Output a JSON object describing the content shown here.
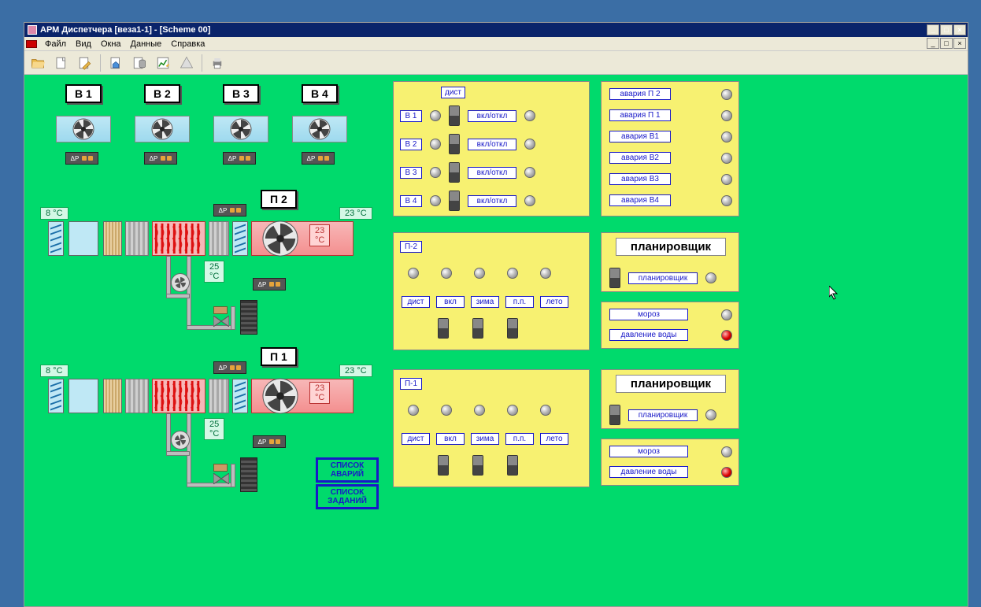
{
  "window": {
    "title": "АРМ Диспетчера [веза1-1] - [Scheme 00]"
  },
  "menu": [
    "Файл",
    "Вид",
    "Окна",
    "Данные",
    "Справка"
  ],
  "toolbar_icons": [
    "open",
    "new",
    "edit",
    "home",
    "db",
    "chart",
    "alarms",
    "print"
  ],
  "fans_top": [
    {
      "label": "В 1"
    },
    {
      "label": "В 2"
    },
    {
      "label": "В 3"
    },
    {
      "label": "В 4"
    }
  ],
  "ahu": [
    {
      "name": "П 2",
      "temp_in": "8  °C",
      "temp_mid": "23  °C",
      "temp_out": "23  °C",
      "temp_supply": "25  °C"
    },
    {
      "name": "П 1",
      "temp_in": "8  °C",
      "temp_mid": "23  °C",
      "temp_out": "23  °C",
      "temp_supply": "25  °C"
    }
  ],
  "listbtns": {
    "alarms": "СПИСОК АВАРИЙ",
    "tasks": "СПИСОК ЗАДАНИЙ"
  },
  "panel_v": {
    "dist": "дист",
    "rows": [
      {
        "label": "В 1",
        "btn": "вкл/откл"
      },
      {
        "label": "В 2",
        "btn": "вкл/откл"
      },
      {
        "label": "В 3",
        "btn": "вкл/откл"
      },
      {
        "label": "В 4",
        "btn": "вкл/откл"
      }
    ]
  },
  "panel_alarms": {
    "items": [
      "авария П 2",
      "авария П 1",
      "авария В1",
      "авария В2",
      "авария В3",
      "авария В4"
    ]
  },
  "panel_p": [
    {
      "label": "П-2",
      "btns": [
        "дист",
        "вкл",
        "зима",
        "п.п.",
        "лето"
      ]
    },
    {
      "label": "П-1",
      "btns": [
        "дист",
        "вкл",
        "зима",
        "п.п.",
        "лето"
      ]
    }
  ],
  "panel_plan": {
    "title": "планировщик",
    "btn": "планировщик",
    "extra": [
      {
        "label": "мороз",
        "lamp": "grey"
      },
      {
        "label": "давление воды",
        "lamp": "red"
      }
    ]
  },
  "colors": {
    "canvas": "#00da6c",
    "panel": "#f7f171",
    "blue": "#1818c8"
  }
}
